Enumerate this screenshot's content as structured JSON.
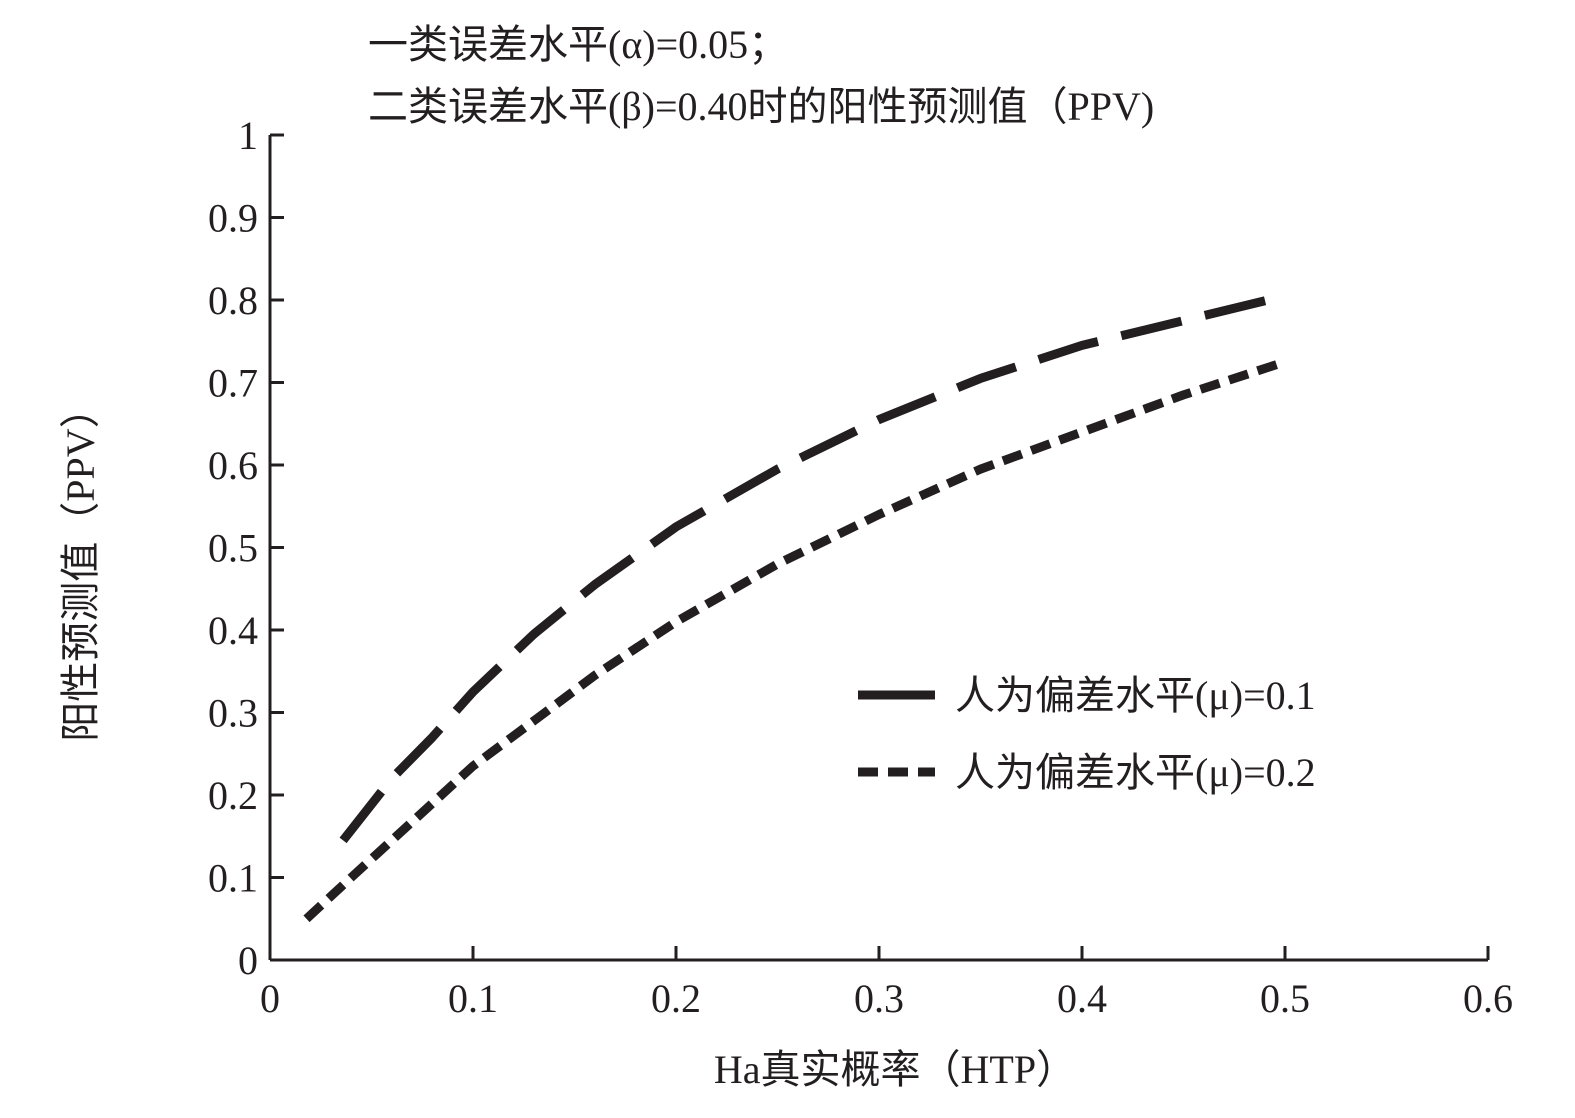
{
  "chart_data": {
    "type": "line",
    "title_lines": [
      "一类误差水平(α)=0.05；",
      "二类误差水平(β)=0.40时的阳性预测值（PPV)"
    ],
    "xlabel": "Ha真实概率（HTP）",
    "ylabel": "阳性预测值（PPV）",
    "xlim": [
      0,
      0.6
    ],
    "ylim": [
      0,
      1
    ],
    "x_ticks": [
      0,
      0.1,
      0.2,
      0.3,
      0.4,
      0.5,
      0.6
    ],
    "x_tick_labels": [
      "0",
      "0.1",
      "0.2",
      "0.3",
      "0.4",
      "0.5",
      "0.6"
    ],
    "y_ticks": [
      0,
      0.1,
      0.2,
      0.3,
      0.4,
      0.5,
      0.6,
      0.7,
      0.8,
      0.9,
      1
    ],
    "y_tick_labels": [
      "0",
      "0.1",
      "0.2",
      "0.3",
      "0.4",
      "0.5",
      "0.6",
      "0.7",
      "0.8",
      "0.9",
      "1"
    ],
    "grid": false,
    "legend_position": "center-right",
    "series": [
      {
        "name": "人为偏差水平(μ)=0.1",
        "style": "long-dash",
        "color": "#231f20",
        "x": [
          0.036,
          0.06,
          0.08,
          0.1,
          0.13,
          0.16,
          0.2,
          0.25,
          0.3,
          0.35,
          0.4,
          0.45,
          0.5
        ],
        "y": [
          0.145,
          0.22,
          0.27,
          0.325,
          0.395,
          0.455,
          0.525,
          0.595,
          0.655,
          0.705,
          0.745,
          0.775,
          0.805
        ]
      },
      {
        "name": "人为偏差水平(μ)=0.2",
        "style": "short-dash",
        "color": "#231f20",
        "x": [
          0.018,
          0.04,
          0.06,
          0.08,
          0.1,
          0.13,
          0.16,
          0.2,
          0.25,
          0.3,
          0.35,
          0.4,
          0.45,
          0.5
        ],
        "y": [
          0.05,
          0.1,
          0.145,
          0.19,
          0.235,
          0.29,
          0.345,
          0.41,
          0.48,
          0.54,
          0.595,
          0.64,
          0.685,
          0.725
        ]
      }
    ]
  }
}
